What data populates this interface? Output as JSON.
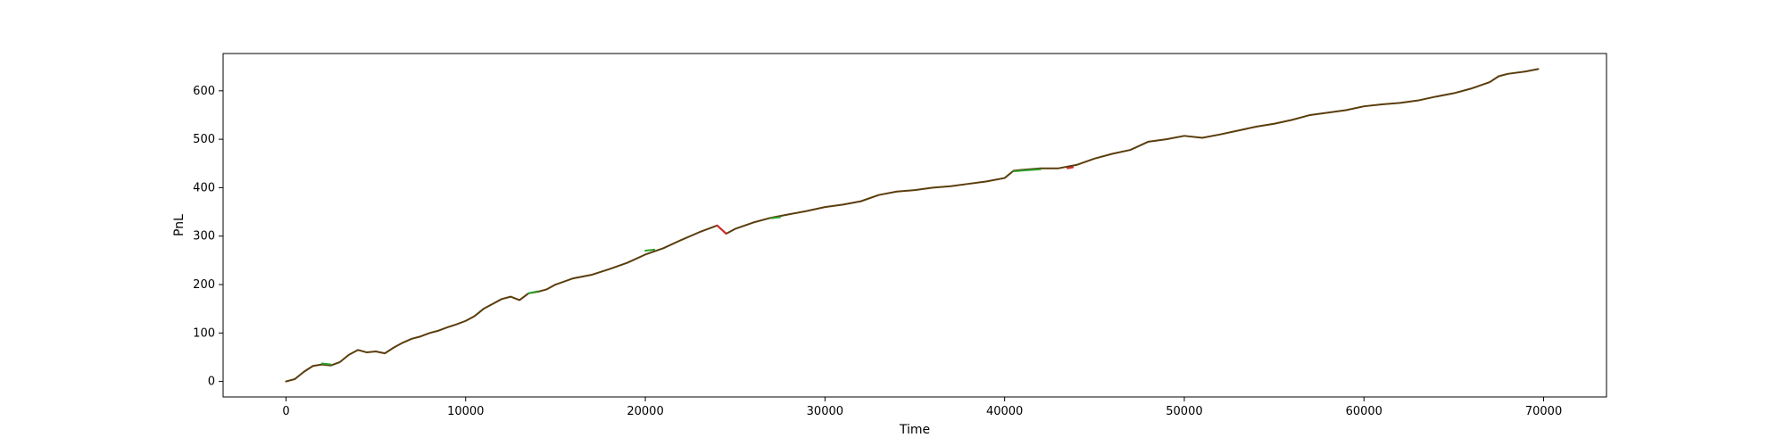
{
  "chart_data": {
    "type": "line",
    "title": "",
    "xlabel": "Time",
    "ylabel": "PnL",
    "xlim": [
      -3500,
      73500
    ],
    "ylim": [
      -32,
      677
    ],
    "xticks": [
      0,
      10000,
      20000,
      30000,
      40000,
      50000,
      60000,
      70000
    ],
    "xtick_labels": [
      "0",
      "10000",
      "20000",
      "30000",
      "40000",
      "50000",
      "60000",
      "70000"
    ],
    "yticks": [
      0,
      100,
      200,
      300,
      400,
      500,
      600
    ],
    "ytick_labels": [
      "0",
      "100",
      "200",
      "300",
      "400",
      "500",
      "600"
    ],
    "grid": false,
    "legend": "none",
    "colors": {
      "line": "#5a3d0c",
      "highlight_up": "#2ca02c",
      "highlight_down": "#d62728"
    },
    "series": [
      {
        "x": [
          0,
          500,
          1000,
          1500,
          2000,
          2500,
          3000,
          3500,
          4000,
          4500,
          5000,
          5500,
          6000,
          6500,
          7000,
          7500,
          8000,
          8500,
          9000,
          9500,
          10000,
          10500,
          11000,
          11500,
          12000,
          12500,
          13000,
          13500,
          14000,
          14500,
          15000,
          16000,
          17000,
          18000,
          19000,
          20000,
          21000,
          22000,
          23000,
          24000,
          24500,
          25000,
          26000,
          27000,
          28000,
          29000,
          30000,
          31000,
          32000,
          33000,
          34000,
          35000,
          36000,
          37000,
          38000,
          39000,
          40000,
          40500,
          41000,
          42000,
          43000,
          44000,
          45000,
          46000,
          47000,
          48000,
          49000,
          50000,
          51000,
          52000,
          53000,
          54000,
          55000,
          56000,
          57000,
          58000,
          59000,
          60000,
          61000,
          62000,
          63000,
          64000,
          65000,
          66000,
          67000,
          67500,
          68000,
          69000,
          69700
        ],
        "y": [
          0,
          5,
          20,
          32,
          35,
          33,
          40,
          55,
          65,
          60,
          62,
          58,
          70,
          80,
          88,
          93,
          100,
          105,
          112,
          118,
          125,
          135,
          150,
          160,
          170,
          175,
          168,
          182,
          185,
          190,
          200,
          213,
          220,
          232,
          245,
          262,
          275,
          292,
          308,
          322,
          305,
          315,
          328,
          338,
          345,
          352,
          360,
          365,
          372,
          385,
          392,
          395,
          400,
          403,
          408,
          413,
          420,
          435,
          437,
          440,
          440,
          447,
          460,
          470,
          478,
          495,
          500,
          507,
          503,
          510,
          518,
          526,
          532,
          540,
          550,
          555,
          560,
          568,
          572,
          575,
          580,
          588,
          595,
          605,
          618,
          630,
          635,
          640,
          645
        ],
        "segments_up": [
          {
            "x": [
              2000,
              2500
            ],
            "y": [
              37,
              35
            ]
          },
          {
            "x": [
              13500,
              14000
            ],
            "y": [
              182,
              186
            ]
          },
          {
            "x": [
              20000,
              20500
            ],
            "y": [
              270,
              272
            ]
          },
          {
            "x": [
              27000,
              27500
            ],
            "y": [
              337,
              339
            ]
          },
          {
            "x": [
              40500,
              42000
            ],
            "y": [
              434,
              438
            ]
          }
        ],
        "segments_down": [
          {
            "x": [
              24000,
              24500
            ],
            "y": [
              322,
              305
            ]
          },
          {
            "x": [
              43500,
              43800
            ],
            "y": [
              440,
              442
            ]
          }
        ]
      }
    ]
  }
}
